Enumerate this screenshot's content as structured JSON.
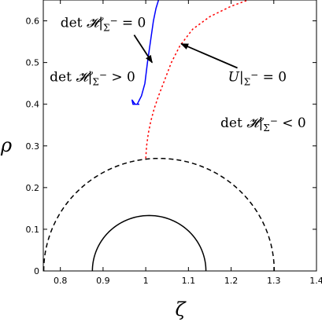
{
  "chart_data": {
    "type": "line",
    "xlabel": "ζ",
    "ylabel": "ρ",
    "xlim": [
      0.76,
      1.4
    ],
    "ylim": [
      0,
      0.65
    ],
    "x_ticks": [
      "0.8",
      "0.9",
      "1",
      "1.1",
      "1.2",
      "1.3",
      "1.4"
    ],
    "y_ticks": [
      "0",
      "0.1",
      "0.2",
      "0.3",
      "0.4",
      "0.5",
      "0.6"
    ],
    "grid": false,
    "series": [
      {
        "style": "solid",
        "color": "#0000ff",
        "x": [
          0.985,
          0.975,
          0.968,
          0.97,
          0.98,
          0.99,
          0.998,
          1.004,
          1.011,
          1.018,
          1.024,
          1.03
        ],
        "y": [
          0.4,
          0.4,
          0.41,
          0.4,
          0.4,
          0.42,
          0.45,
          0.5,
          0.55,
          0.6,
          0.63,
          0.65
        ]
      },
      {
        "style": "dotted",
        "color": "#ff0000",
        "x": [
          1.0,
          1.002,
          1.006,
          1.012,
          1.02,
          1.03,
          1.045,
          1.06,
          1.08,
          1.11,
          1.15,
          1.2,
          1.24
        ],
        "y": [
          0.27,
          0.3,
          0.33,
          0.36,
          0.39,
          0.42,
          0.46,
          0.5,
          0.54,
          0.58,
          0.61,
          0.635,
          0.65
        ]
      },
      {
        "style": "dashed",
        "color": "#000000",
        "shape": "semicircle",
        "center": 1.031,
        "radius": 0.27
      },
      {
        "style": "solid",
        "color": "#000000",
        "shape": "semicircle",
        "center": 1.008,
        "radius": 0.133
      }
    ],
    "annotations": [
      {
        "prefix": "det ",
        "symbol": "𝓗",
        "bar": "|",
        "sub": "Σ",
        "sup": "−",
        "rel": " = 0",
        "x": 0.8,
        "y": 0.585,
        "anchor": "start",
        "arrow_to": [
          1.015,
          0.5
        ]
      },
      {
        "prefix": "det ",
        "symbol": "𝓗",
        "bar": "|",
        "sub": "Σ",
        "sup": "−",
        "rel": " > 0",
        "x": 0.775,
        "y": 0.455,
        "anchor": "start"
      },
      {
        "prefix": "",
        "symbol": "U",
        "bar": "|",
        "sub": "Σ",
        "sup": "−",
        "rel": " = 0",
        "x": 1.33,
        "y": 0.455,
        "anchor": "end",
        "arrow_to": [
          1.083,
          0.545
        ]
      },
      {
        "prefix": "det ",
        "symbol": "𝓗",
        "bar": "|",
        "sub": "Σ",
        "sup": "−",
        "rel": " < 0",
        "x": 1.175,
        "y": 0.345,
        "anchor": "start"
      }
    ]
  }
}
